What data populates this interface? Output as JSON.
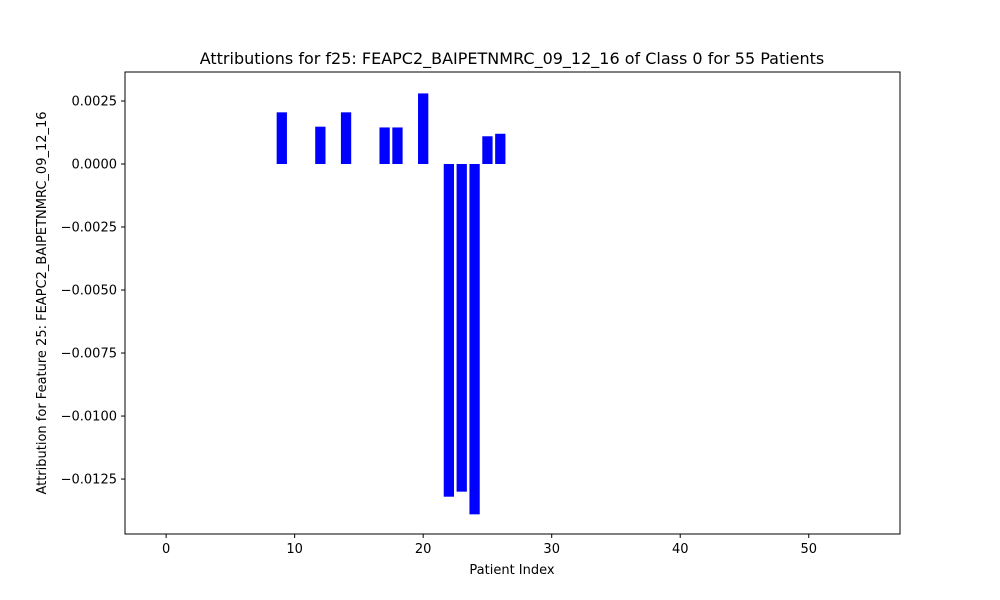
{
  "chart_data": {
    "type": "bar",
    "title": "Attributions for f25: FEAPC2_BAIPETNMRC_09_12_16 of Class 0 for 55 Patients",
    "xlabel": "Patient Index",
    "ylabel": "Attribution for Feature 25: FEAPC2_BAIPETNMRC_09_12_16",
    "xlim": [
      -3.2,
      57.1
    ],
    "ylim": [
      -0.01468,
      0.00365
    ],
    "x_ticks": [
      0,
      10,
      20,
      30,
      40,
      50
    ],
    "y_ticks": [
      0.0025,
      0.0,
      -0.0025,
      -0.005,
      -0.0075,
      -0.01,
      -0.0125
    ],
    "y_tick_labels": [
      "0.0025",
      "0.0000",
      "−0.0025",
      "−0.0050",
      "−0.0075",
      "−0.0100",
      "−0.0125"
    ],
    "bar_width": 0.8,
    "bar_color": "#0000ff",
    "grid": false,
    "x": [
      9,
      12,
      14,
      17,
      18,
      20,
      22,
      23,
      24,
      25,
      26
    ],
    "values": [
      0.00205,
      0.00148,
      0.00205,
      0.00145,
      0.00145,
      0.0028,
      -0.0132,
      -0.013,
      -0.0139,
      0.0011,
      0.0012
    ]
  }
}
